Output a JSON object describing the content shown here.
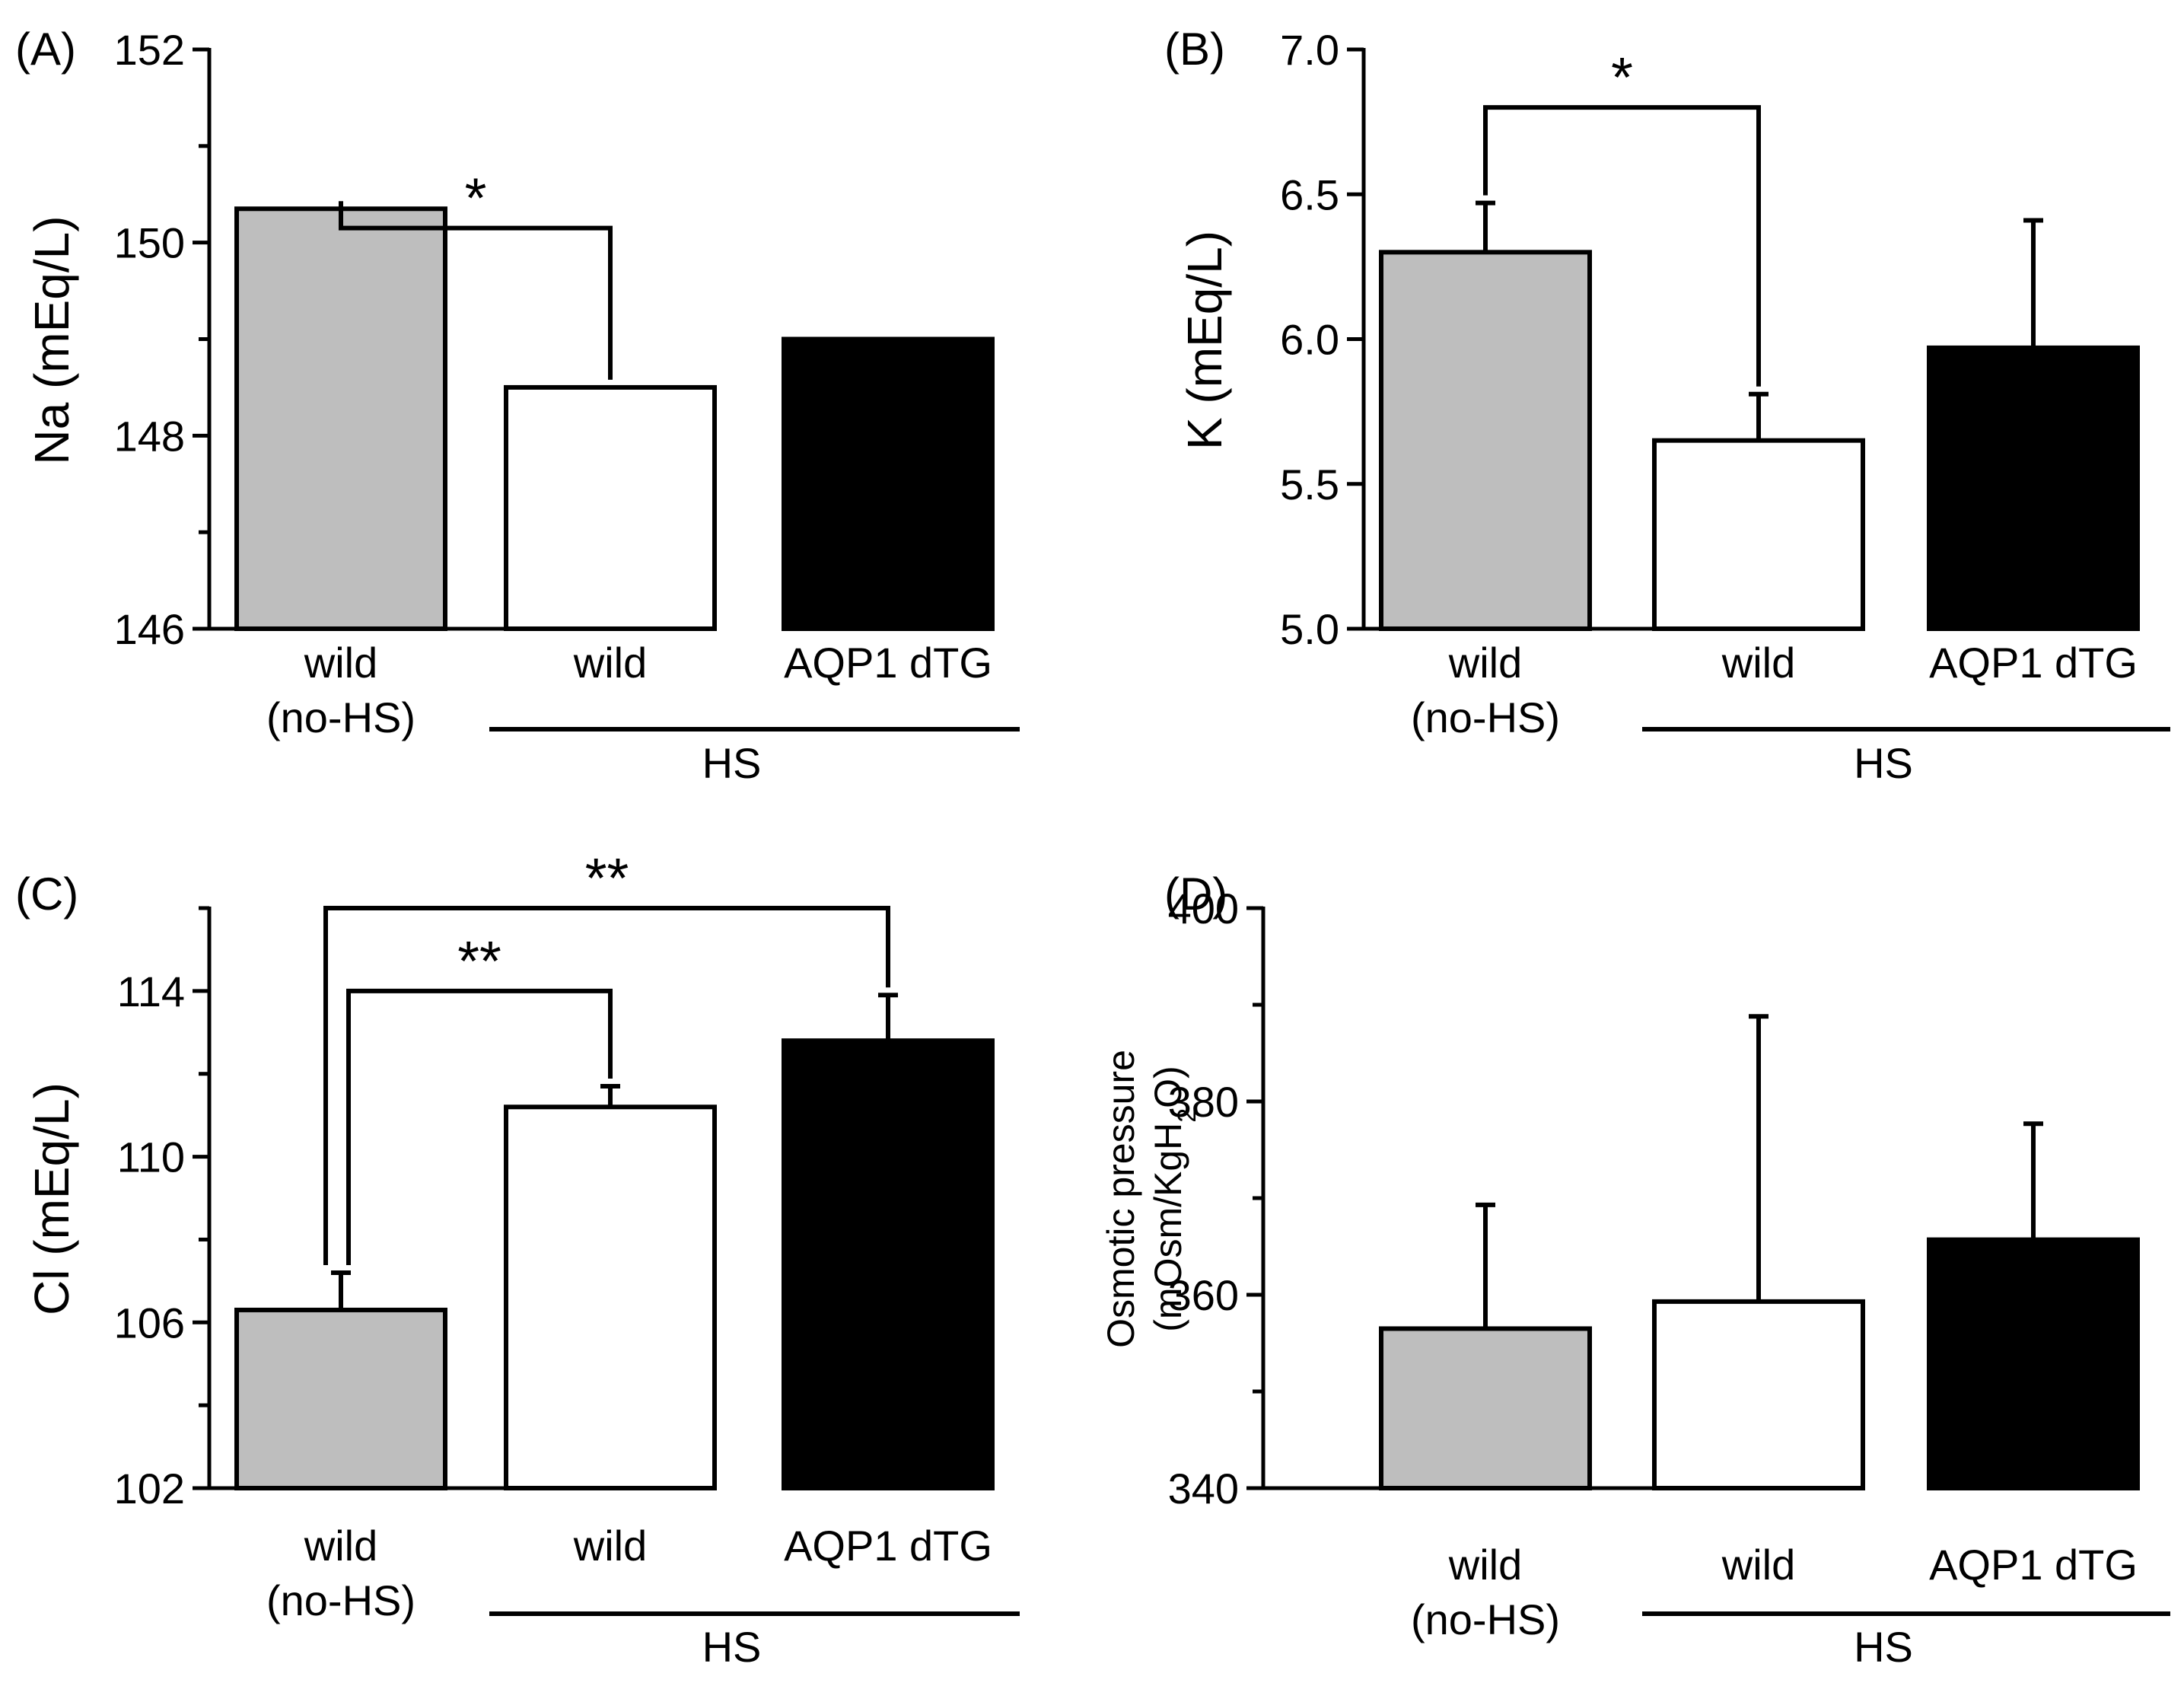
{
  "chart_data": [
    {
      "panel": "(A)",
      "type": "bar",
      "ylabel": "Na (mEq/L)",
      "ylim": [
        146,
        152
      ],
      "major_ticks": [
        146,
        148,
        150,
        152
      ],
      "minor_ticks": [
        147,
        149,
        151
      ],
      "categories": [
        {
          "lines": [
            "wild",
            "(no-HS)"
          ],
          "color": "#bebebe",
          "value": 150.35,
          "error": 0.0
        },
        {
          "lines": [
            "wild"
          ],
          "color": "#ffffff",
          "value": 148.5,
          "error": 0.0
        },
        {
          "lines": [
            "AQP1 dTG"
          ],
          "color": "#000000",
          "value": 149.0,
          "error": 0.0
        }
      ],
      "group_label": "HS",
      "significance": [
        {
          "from": 0,
          "to": 1,
          "label": "*",
          "level": 150.15
        }
      ]
    },
    {
      "panel": "(B)",
      "type": "bar",
      "ylabel": "K (mEq/L)",
      "ylim": [
        5.0,
        7.0
      ],
      "major_ticks": [
        5.0,
        5.5,
        6.0,
        6.5,
        7.0
      ],
      "minor_ticks": [],
      "tick_decimals": 1,
      "categories": [
        {
          "lines": [
            "wild",
            "(no-HS)"
          ],
          "color": "#bebebe",
          "value": 6.3,
          "error": 0.17
        },
        {
          "lines": [
            "wild"
          ],
          "color": "#ffffff",
          "value": 5.65,
          "error": 0.16
        },
        {
          "lines": [
            "AQP1 dTG"
          ],
          "color": "#000000",
          "value": 5.97,
          "error": 0.44
        }
      ],
      "group_label": "HS",
      "significance": [
        {
          "from": 0,
          "to": 1,
          "label": "*",
          "level": 6.8
        }
      ]
    },
    {
      "panel": "(C)",
      "type": "bar",
      "ylabel": "Cl (mEq/L)",
      "ylim": [
        102,
        116
      ],
      "major_ticks": [
        102,
        106,
        110,
        114
      ],
      "minor_ticks": [
        104,
        108,
        112,
        116
      ],
      "categories": [
        {
          "lines": [
            "wild",
            "(no-HS)"
          ],
          "color": "#bebebe",
          "value": 106.3,
          "error": 0.9
        },
        {
          "lines": [
            "wild"
          ],
          "color": "#ffffff",
          "value": 111.2,
          "error": 0.5
        },
        {
          "lines": [
            "AQP1 dTG"
          ],
          "color": "#000000",
          "value": 112.8,
          "error": 1.1
        }
      ],
      "group_label": "HS",
      "significance": [
        {
          "from": 0,
          "to": 1,
          "label": "**",
          "level": 114.0
        },
        {
          "from": 0,
          "to": 2,
          "label": "**",
          "level": 116.0
        }
      ]
    },
    {
      "panel": "(D)",
      "type": "bar",
      "ylabel": "Osmotic pressure",
      "ylabel2": "(mOsm/KgH2O)",
      "ylabel2_parts": {
        "before": "(mOsm/KgH",
        "sub": "2",
        "after": "O)"
      },
      "ylim": [
        340,
        400
      ],
      "major_ticks": [
        340,
        360,
        380,
        400
      ],
      "minor_ticks": [
        350,
        370,
        390
      ],
      "categories": [
        {
          "lines": [
            "wild",
            "(no-HS)"
          ],
          "color": "#bebebe",
          "value": 356.5,
          "error": 12.8
        },
        {
          "lines": [
            "wild"
          ],
          "color": "#ffffff",
          "value": 359.3,
          "error": 29.5
        },
        {
          "lines": [
            "AQP1 dTG"
          ],
          "color": "#000000",
          "value": 365.7,
          "error": 12.0
        }
      ],
      "group_label": "HS",
      "significance": []
    }
  ]
}
